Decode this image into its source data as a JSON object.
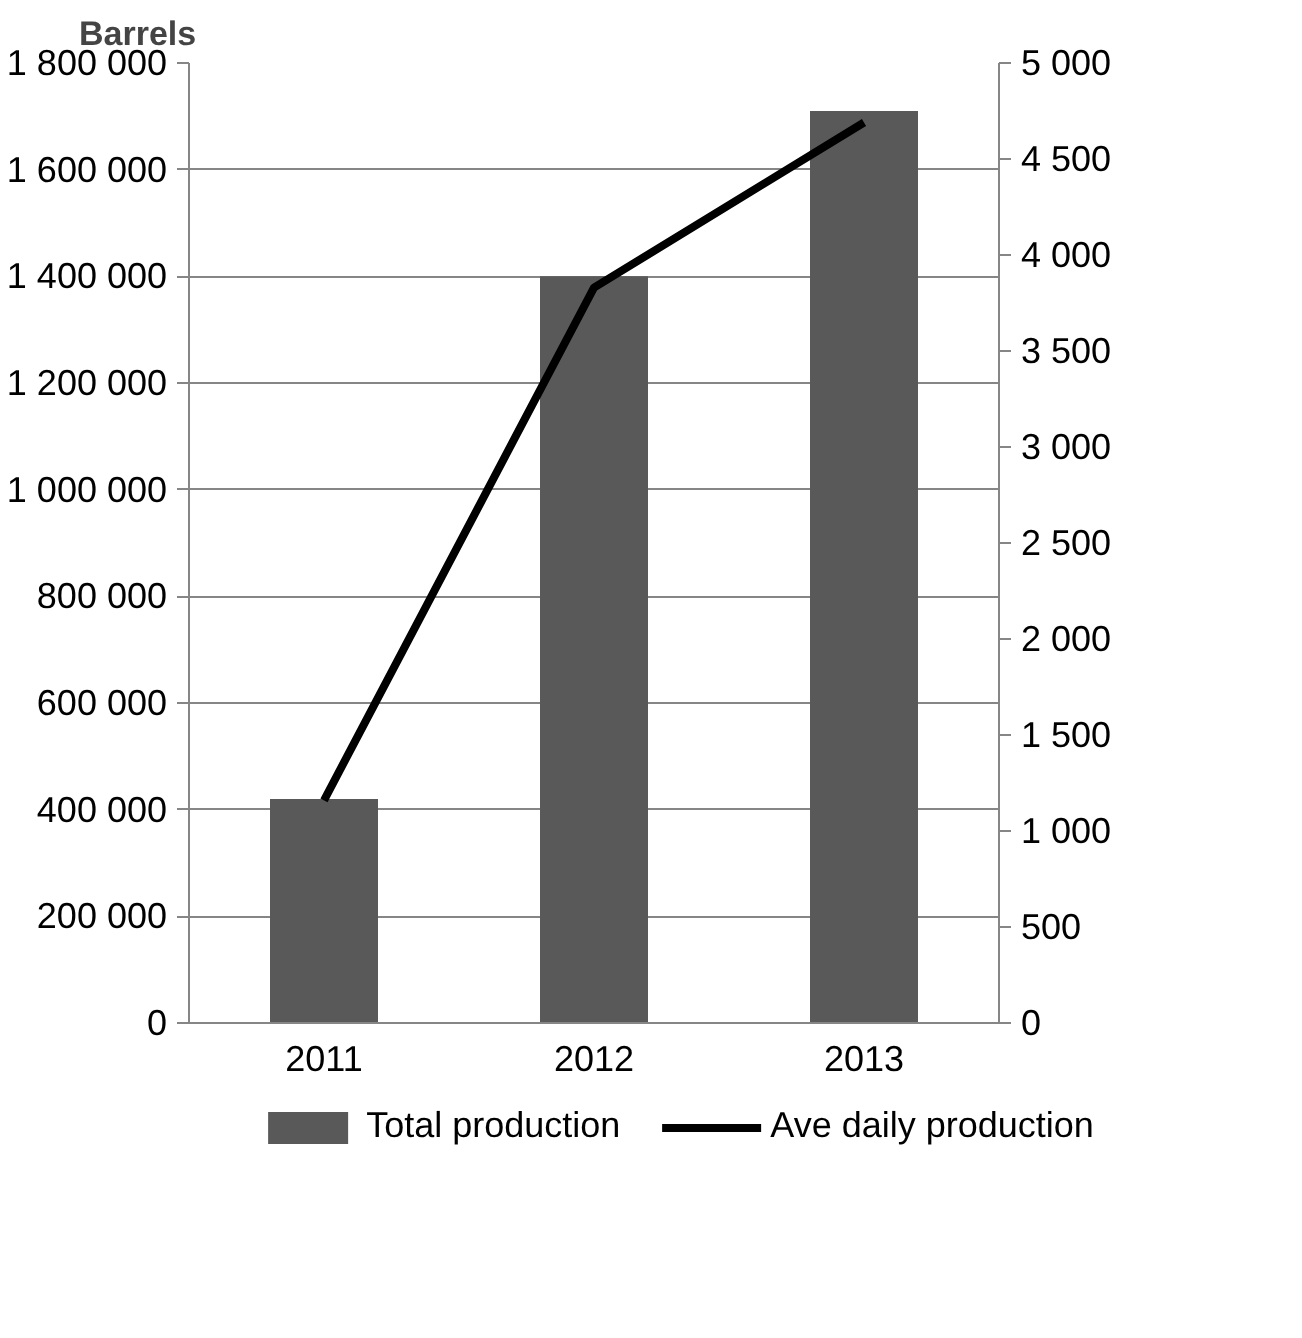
{
  "chart_data": {
    "type": "bar",
    "ylabel": "Barrels",
    "categories": [
      "2011",
      "2012",
      "2013"
    ],
    "series": [
      {
        "name": "Total production",
        "color": "#595959",
        "values": [
          420000,
          1400000,
          1710000
        ]
      },
      {
        "name": "Ave daily production",
        "type": "line",
        "color": "#000000",
        "axis": "y2",
        "values": [
          1160,
          3830,
          4690
        ]
      }
    ],
    "ylim": [
      0,
      1800000
    ],
    "yticks": [
      0,
      {
        "value": 200000,
        "label": "200 000"
      },
      {
        "value": 400000,
        "label": "400 000"
      },
      {
        "value": 600000,
        "label": "600 000"
      },
      {
        "value": 800000,
        "label": "800 000"
      },
      {
        "value": 1000000,
        "label": "1 000 000"
      },
      {
        "value": 1200000,
        "label": "1 200 000"
      },
      {
        "value": 1400000,
        "label": "1 400 000"
      },
      {
        "value": 1600000,
        "label": "1 600 000"
      },
      {
        "value": 1800000,
        "label": "1 800 000"
      }
    ],
    "y2lim": [
      0,
      5000
    ],
    "y2ticks": [
      0,
      500,
      {
        "value": 1000,
        "label": "1 000"
      },
      {
        "value": 1500,
        "label": "1 500"
      },
      {
        "value": 2000,
        "label": "2 000"
      },
      {
        "value": 2500,
        "label": "2 500"
      },
      {
        "value": 3000,
        "label": "3 000"
      },
      {
        "value": 3500,
        "label": "3 500"
      },
      {
        "value": 4000,
        "label": "4 000"
      },
      {
        "value": 4500,
        "label": "4 500"
      },
      {
        "value": 5000,
        "label": "5 000"
      }
    ],
    "grid": "y",
    "legend": "bottom"
  }
}
